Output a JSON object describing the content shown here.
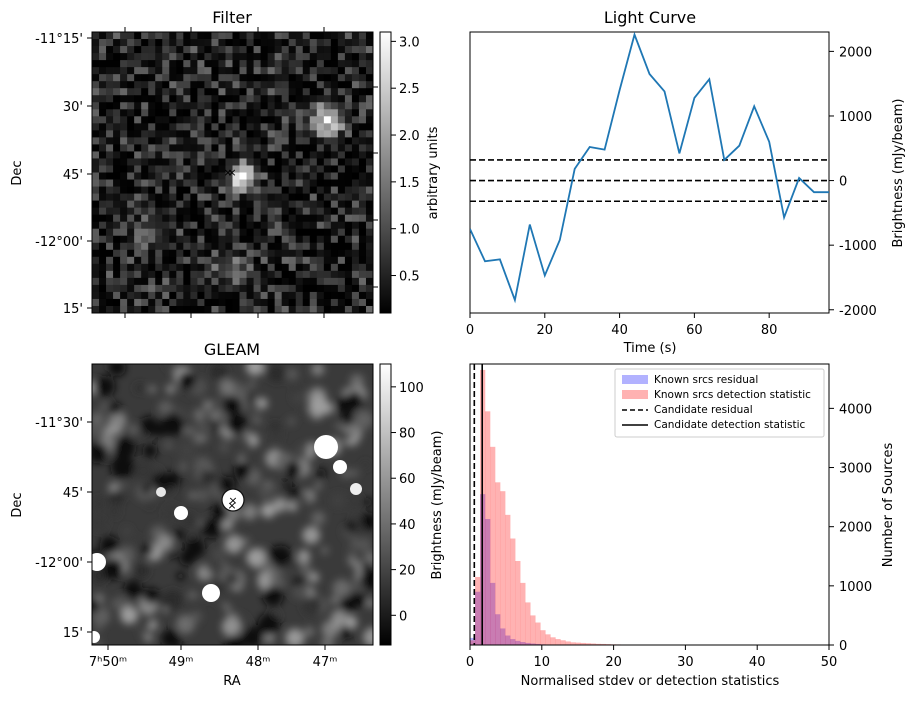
{
  "colors": {
    "line": "#1f77b4",
    "known_residual": "#0000ff",
    "known_detection": "#ff0000",
    "marker_candidate": "#0000ff",
    "marker_catalogue": "#ff0000"
  },
  "chart_data": [
    {
      "id": "filter",
      "type": "heatmap",
      "title": "Filter",
      "xlabel": "",
      "ylabel": "Dec",
      "yticks": [
        "-11°15'",
        "30'",
        "45'",
        "-12°00'",
        "15'"
      ],
      "colorbar": {
        "label": "arbitrary units",
        "range": [
          0.1,
          3.1
        ],
        "ticks": [
          0.5,
          1.0,
          1.5,
          2.0,
          2.5,
          3.0
        ],
        "cmap": "gray"
      },
      "grid": false
    },
    {
      "id": "lightcurve",
      "type": "line",
      "title": "Light Curve",
      "xlabel": "Time (s)",
      "ylabel": "Brightness (mJy/beam)",
      "xlim": [
        0,
        96
      ],
      "ylim": [
        -2050,
        2300
      ],
      "xticks": [
        0,
        20,
        40,
        60,
        80
      ],
      "yticks": [
        -2000,
        -1000,
        0,
        1000,
        2000
      ],
      "series": [
        {
          "x": [
            0,
            4,
            8,
            12,
            16,
            20,
            24,
            28,
            32,
            36,
            40,
            44,
            48,
            52,
            56,
            60,
            64,
            68,
            72,
            76,
            80,
            84,
            88,
            92,
            96
          ],
          "values": [
            -750,
            -1250,
            -1220,
            -1850,
            -680,
            -1470,
            -920,
            180,
            520,
            480,
            1400,
            2260,
            1650,
            1380,
            420,
            1280,
            1570,
            320,
            540,
            1150,
            600,
            -570,
            40,
            -180,
            -180
          ]
        }
      ],
      "hlines": [
        320,
        0,
        -320
      ],
      "grid": false
    },
    {
      "id": "gleam",
      "type": "heatmap",
      "title": "GLEAM",
      "xlabel": "RA",
      "ylabel": "Dec",
      "xticks": [
        "7ʰ50ᵐ",
        "49ᵐ",
        "48ᵐ",
        "47ᵐ"
      ],
      "yticks": [
        "-11°30'",
        "45'",
        "-12°00'",
        "15'"
      ],
      "colorbar": {
        "label": "Brightness (mJy/beam)",
        "range": [
          -13,
          110
        ],
        "ticks": [
          0,
          20,
          40,
          60,
          80,
          100
        ],
        "cmap": "gray"
      },
      "grid": false
    },
    {
      "id": "histogram",
      "type": "bar",
      "title": "",
      "xlabel": "Normalised stdev or detection statistics",
      "ylabel": "Number of Sources",
      "xlim": [
        0,
        50
      ],
      "ylim": [
        0,
        4750
      ],
      "xticks": [
        0,
        10,
        20,
        30,
        40,
        50
      ],
      "yticks": [
        0,
        1000,
        2000,
        3000,
        4000
      ],
      "bin_width": 0.7,
      "legend_position": "top-right",
      "series": [
        {
          "name": "Known srcs residual",
          "bin_start": 0,
          "values": [
            120,
            900,
            2550,
            2130,
            1050,
            520,
            280,
            160,
            100,
            70,
            50,
            35,
            25,
            18,
            12,
            8,
            6,
            4,
            3,
            2
          ]
        },
        {
          "name": "Known srcs detection statistic",
          "bin_start": 0,
          "values": [
            80,
            1150,
            4650,
            3950,
            3350,
            2750,
            2600,
            2200,
            1800,
            1420,
            1050,
            720,
            500,
            380,
            250,
            180,
            130,
            100,
            80,
            60,
            45,
            40,
            35,
            30,
            25,
            20,
            18,
            15,
            12,
            10,
            8,
            8,
            6,
            6,
            5,
            5,
            4,
            4,
            3,
            3,
            3,
            2,
            2,
            2,
            2,
            2,
            2,
            2,
            2,
            2,
            2,
            2,
            2,
            2,
            2,
            2,
            2,
            2,
            2,
            2,
            2,
            2,
            2,
            2,
            2,
            2,
            2,
            2,
            2,
            2
          ]
        }
      ],
      "vlines": [
        {
          "name": "Candidate residual",
          "x": 0.6,
          "style": "dashed"
        },
        {
          "name": "Candidate detection statistic",
          "x": 1.7,
          "style": "solid"
        }
      ],
      "grid": false
    }
  ]
}
